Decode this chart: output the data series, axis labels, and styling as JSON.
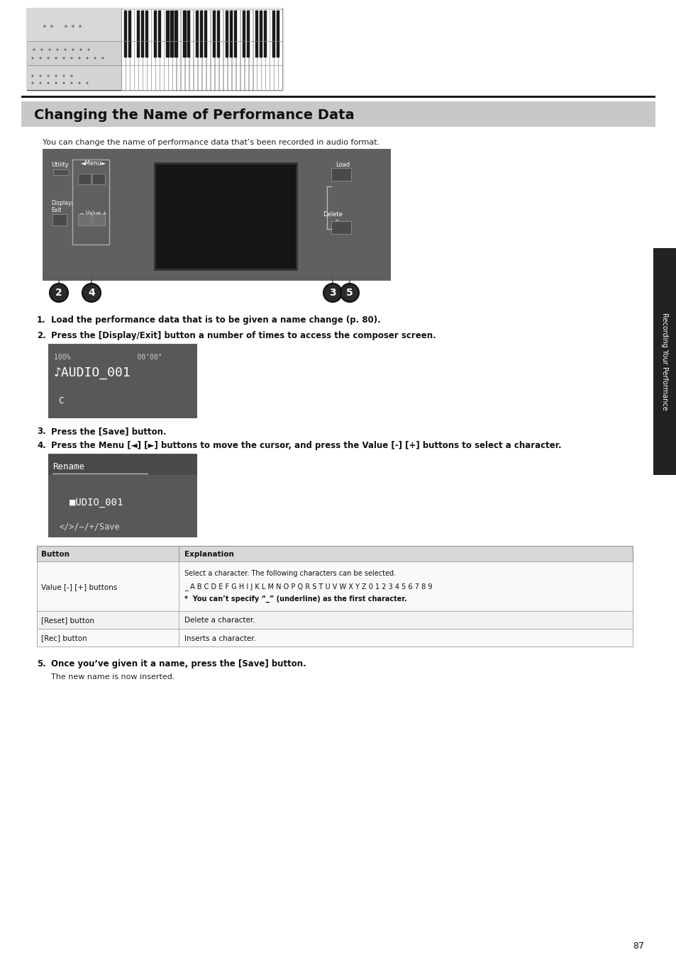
{
  "bg_color": "#ffffff",
  "title_section_bg": "#c8c8c8",
  "title_text": "Changing the Name of Performance Data",
  "title_fontsize": 14,
  "subtitle": "You can change the name of performance data that’s been recorded in audio format.",
  "step1": "Load the performance data that is to be given a name change (p. 80).",
  "step2": "Press the [Display/Exit] button a number of times to access the composer screen.",
  "step3": "Press the [Save] button.",
  "step4": "Press the Menu [◄] [►] buttons to move the cursor, and press the Value [-] [+] buttons to select a character.",
  "step5_header": "Once you’ve given it a name, press the [Save] button.",
  "step5_sub": "The new name is now inserted.",
  "table_col1_header": "Button",
  "table_col2_header": "Explanation",
  "table_row1_col1": "Value [-] [+] buttons",
  "table_row1_col2_line1": "Select a character. The following characters can be selected.",
  "table_row1_col2_line2": "_ A B C D E F G H I J K L M N O P Q R S T U V W X Y Z 0 1 2 3 4 5 6 7 8 9",
  "table_row1_col2_line3": "*  You can’t specify “_” (underline) as the first character.",
  "table_row2_col1": "[Reset] button",
  "table_row2_col2": "Delete a character.",
  "table_row3_col1": "[Rec] button",
  "table_row3_col2": "Inserts a character.",
  "page_number": "87",
  "sidebar_text": "Recording Your Performance",
  "screen1_line1": "100%                00’00\"",
  "screen1_line2": "♪AUDIO_001",
  "screen1_line3": "C",
  "screen2_header": "Rename",
  "screen2_line1": "■UDIO_001",
  "screen2_line2": "</>/−/+/Save",
  "panel_bg": "#606060",
  "screen_bg": "#202020",
  "screen1_bg": "#585858",
  "screen2_bg": "#585858"
}
